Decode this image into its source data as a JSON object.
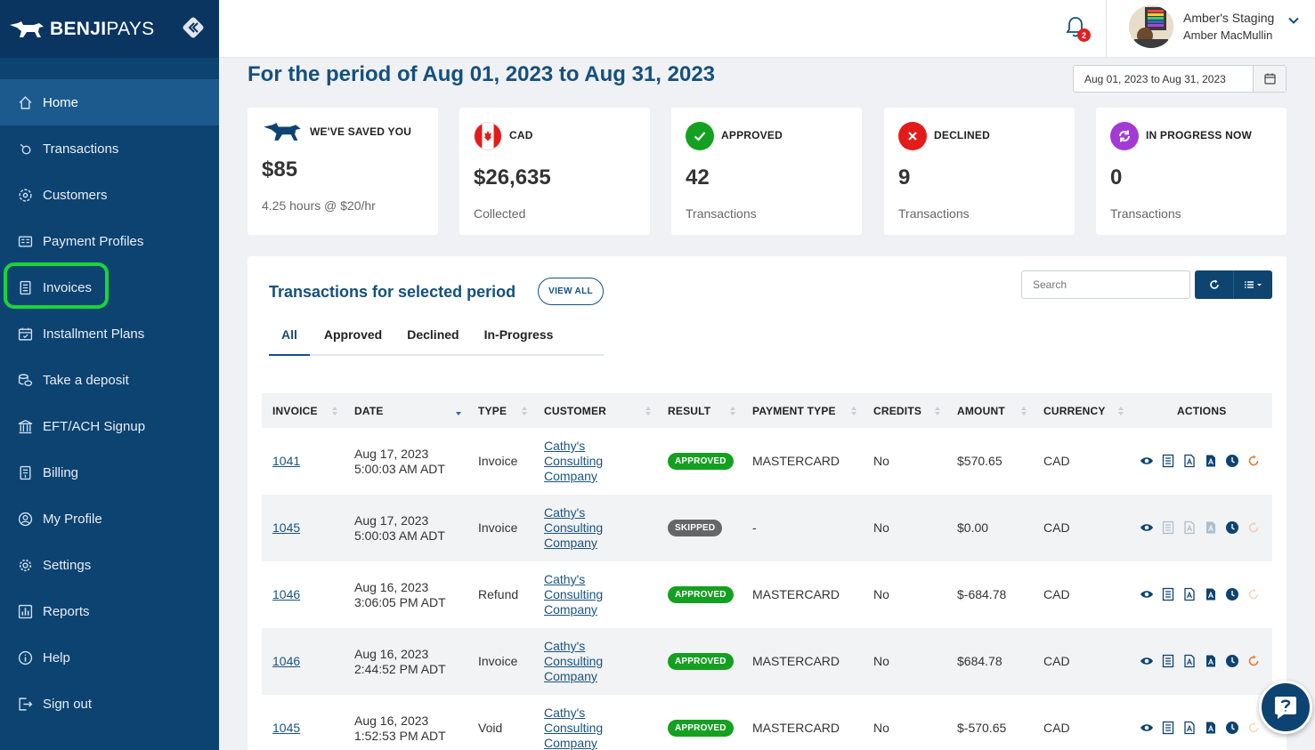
{
  "brand": {
    "name_bold": "BENJI",
    "name_light": "PAYS"
  },
  "sidebar": {
    "items": [
      {
        "label": "Home",
        "icon": "home-icon"
      },
      {
        "label": "Transactions",
        "icon": "search-icon"
      },
      {
        "label": "Customers",
        "icon": "users-icon"
      },
      {
        "label": "Payment Profiles",
        "icon": "card-icon"
      },
      {
        "label": "Invoices",
        "icon": "invoice-icon"
      },
      {
        "label": "Installment Plans",
        "icon": "calendar-icon"
      },
      {
        "label": "Take a deposit",
        "icon": "coins-icon"
      },
      {
        "label": "EFT/ACH Signup",
        "icon": "bank-icon"
      },
      {
        "label": "Billing",
        "icon": "billing-icon"
      },
      {
        "label": "My Profile",
        "icon": "profile-icon"
      },
      {
        "label": "Settings",
        "icon": "gear-icon"
      },
      {
        "label": "Reports",
        "icon": "chart-icon"
      },
      {
        "label": "Help",
        "icon": "info-icon"
      },
      {
        "label": "Sign out",
        "icon": "sign-out-icon"
      }
    ],
    "active": "Home",
    "highlighted": "Invoices"
  },
  "topbar": {
    "notification_count": "2",
    "org_name": "Amber's Staging",
    "user_name": "Amber MacMullin"
  },
  "header": {
    "period_title": "For the period of Aug 01, 2023 to Aug 31, 2023",
    "date_range": "Aug 01, 2023 to Aug 31, 2023"
  },
  "cards": {
    "saved": {
      "label": "WE'VE SAVED YOU",
      "value": "$85",
      "sub": "4.25 hours @ $20/hr"
    },
    "cad": {
      "label": "CAD",
      "value": "$26,635",
      "sub": "Collected"
    },
    "approved": {
      "label": "APPROVED",
      "value": "42",
      "sub": "Transactions"
    },
    "declined": {
      "label": "DECLINED",
      "value": "9",
      "sub": "Transactions"
    },
    "in_progress": {
      "label": "IN PROGRESS NOW",
      "value": "0",
      "sub": "Transactions"
    }
  },
  "transactions": {
    "title": "Transactions for selected period",
    "view_all": "VIEW ALL",
    "search_placeholder": "Search",
    "tabs": [
      "All",
      "Approved",
      "Declined",
      "In-Progress"
    ],
    "active_tab": "All",
    "columns": [
      "INVOICE",
      "DATE",
      "TYPE",
      "CUSTOMER",
      "RESULT",
      "PAYMENT TYPE",
      "CREDITS",
      "AMOUNT",
      "CURRENCY",
      "ACTIONS"
    ],
    "rows": [
      {
        "invoice": "1041",
        "date": "Aug 17, 2023",
        "time": "5:00:03 AM ADT",
        "type": "Invoice",
        "customer": [
          "Cathy's",
          "Consulting",
          "Company"
        ],
        "result": "APPROVED",
        "payment_type": "MASTERCARD",
        "credits": "No",
        "amount": "$570.65",
        "currency": "CAD"
      },
      {
        "invoice": "1045",
        "date": "Aug 17, 2023",
        "time": "5:00:03 AM ADT",
        "type": "Invoice",
        "customer": [
          "Cathy's",
          "Consulting",
          "Company"
        ],
        "result": "SKIPPED",
        "payment_type": "-",
        "credits": "No",
        "amount": "$0.00",
        "currency": "CAD"
      },
      {
        "invoice": "1046",
        "date": "Aug 16, 2023",
        "time": "3:06:05 PM ADT",
        "type": "Refund",
        "customer": [
          "Cathy's",
          "Consulting",
          "Company"
        ],
        "result": "APPROVED",
        "payment_type": "MASTERCARD",
        "credits": "No",
        "amount": "$-684.78",
        "currency": "CAD"
      },
      {
        "invoice": "1046",
        "date": "Aug 16, 2023",
        "time": "2:44:52 PM ADT",
        "type": "Invoice",
        "customer": [
          "Cathy's",
          "Consulting",
          "Company"
        ],
        "result": "APPROVED",
        "payment_type": "MASTERCARD",
        "credits": "No",
        "amount": "$684.78",
        "currency": "CAD"
      },
      {
        "invoice": "1045",
        "date": "Aug 16, 2023",
        "time": "1:52:53 PM ADT",
        "type": "Void",
        "customer": [
          "Cathy's",
          "Consulting",
          "Company"
        ],
        "result": "APPROVED",
        "payment_type": "MASTERCARD",
        "credits": "No",
        "amount": "$-570.65",
        "currency": "CAD"
      }
    ]
  },
  "colors": {
    "sidebar": "#0d4371",
    "accent": "#14507e",
    "approved": "#14a020",
    "declined": "#e31b1b",
    "in_progress": "#a43ad4",
    "highlight": "#19d43a"
  }
}
